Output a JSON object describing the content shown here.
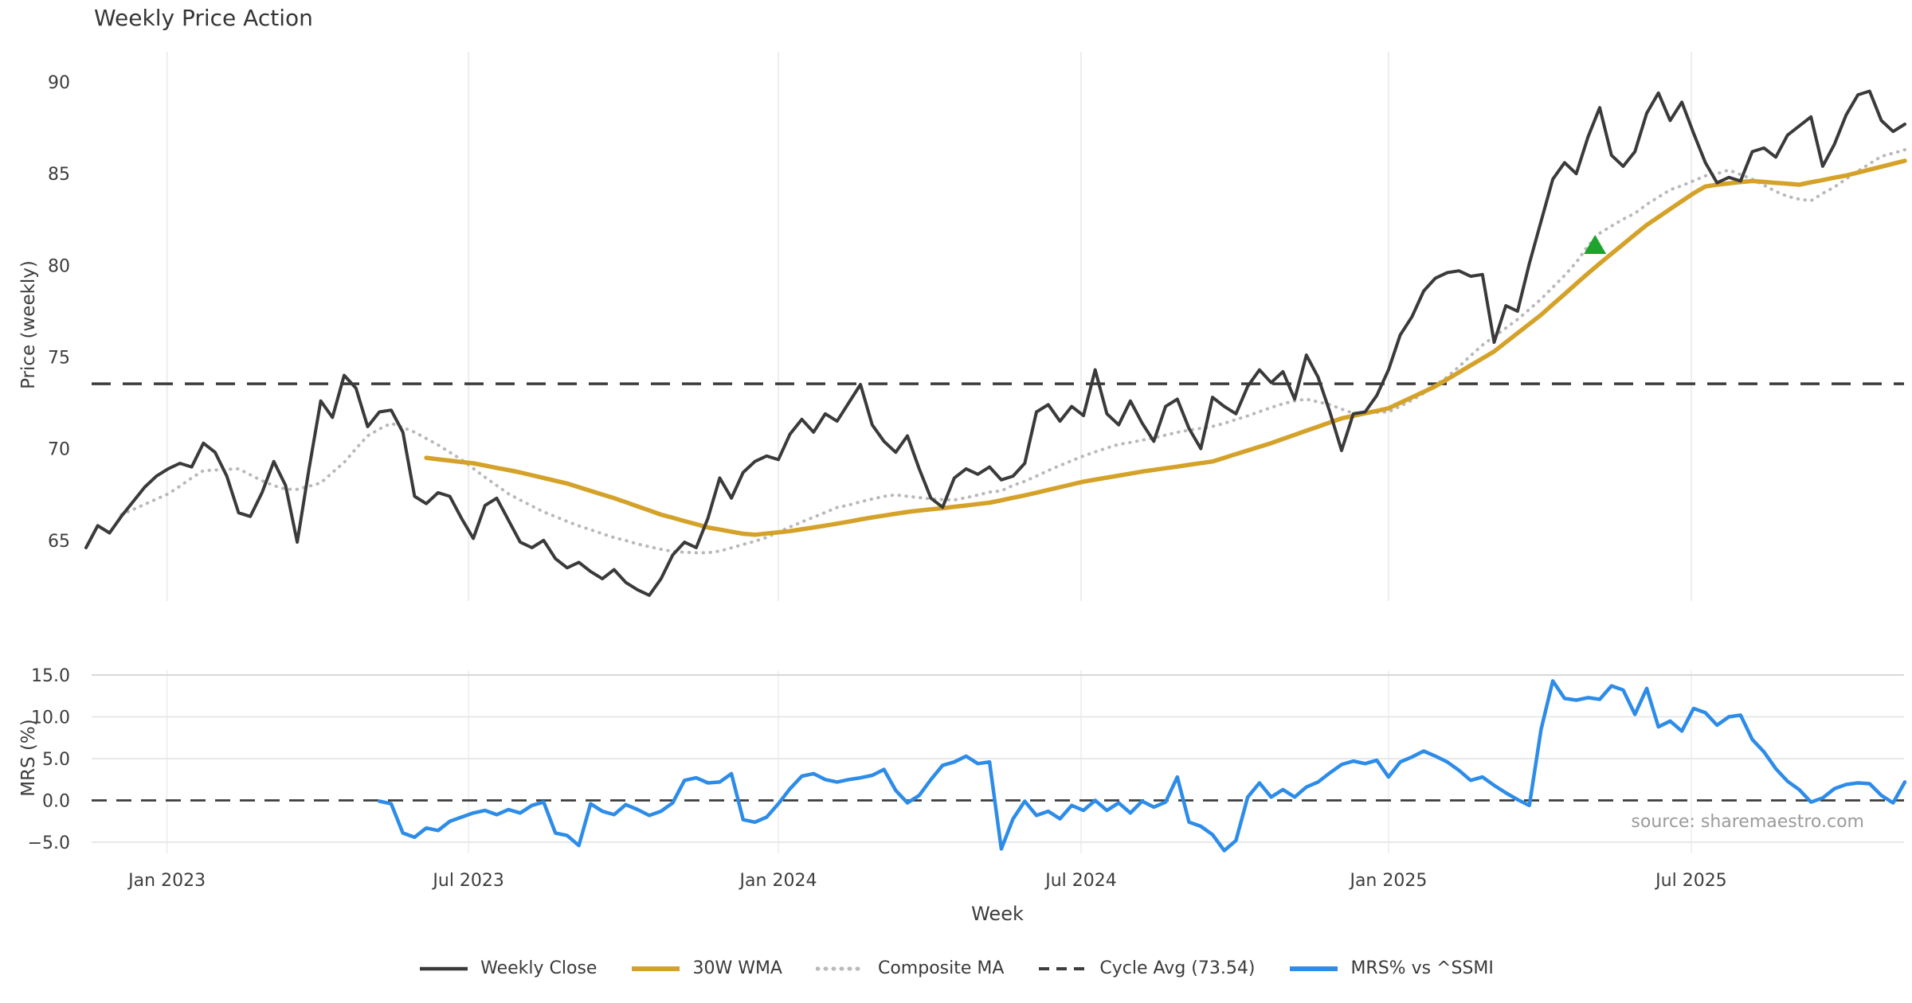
{
  "title": "Weekly Price Action",
  "source_note": "source: sharemaestro.com",
  "chart_data": {
    "type": "line",
    "title": "Weekly Price Action",
    "xlabel": "Week",
    "x_ticks": [
      {
        "label": "Jan 2023",
        "week": 6.9
      },
      {
        "label": "Jul 2023",
        "week": 32.6
      },
      {
        "label": "Jan 2024",
        "week": 59.0
      },
      {
        "label": "Jul 2024",
        "week": 84.8
      },
      {
        "label": "Jan 2025",
        "week": 111.0
      },
      {
        "label": "Jul 2025",
        "week": 136.8
      }
    ],
    "weeks_total": 155,
    "price_panel": {
      "ylabel": "Price (weekly)",
      "y_ticks": [
        90,
        85,
        80,
        75,
        70,
        65
      ],
      "ylim": [
        61.7,
        91.7
      ],
      "grid": "vertical-only",
      "cycle_avg": {
        "name": "Cycle Avg (73.54)",
        "value": 73.54,
        "color": "#3d3d3d",
        "style": "dashed"
      },
      "signal_marker": {
        "shape": "triangle-up",
        "color": "#1ca42c",
        "week": 128.6,
        "value": 81.1
      },
      "series": [
        {
          "name": "Composite MA",
          "color": "#b9b9b9",
          "style": "dotted",
          "width": 4,
          "start_week": 3,
          "values": [
            66.4,
            66.68,
            66.96,
            67.25,
            67.53,
            67.95,
            68.4,
            68.8,
            68.83,
            68.87,
            68.9,
            68.57,
            68.25,
            67.98,
            67.79,
            67.78,
            67.95,
            68.13,
            68.7,
            69.25,
            70.0,
            70.7,
            71.07,
            71.38,
            71.15,
            70.9,
            70.55,
            70.2,
            69.8,
            69.4,
            68.92,
            68.44,
            67.99,
            67.54,
            67.2,
            66.87,
            66.55,
            66.29,
            66.03,
            65.79,
            65.58,
            65.36,
            65.15,
            64.99,
            64.8,
            64.65,
            64.51,
            64.39,
            64.35,
            64.32,
            64.32,
            64.41,
            64.59,
            64.77,
            64.95,
            65.16,
            65.45,
            65.73,
            66.0,
            66.26,
            66.52,
            66.79,
            66.92,
            67.1,
            67.25,
            67.4,
            67.48,
            67.4,
            67.33,
            67.26,
            67.22,
            67.2,
            67.33,
            67.47,
            67.63,
            67.7,
            68.0,
            68.22,
            68.5,
            68.81,
            69.08,
            69.34,
            69.6,
            69.82,
            70.04,
            70.23,
            70.34,
            70.46,
            70.59,
            70.74,
            70.89,
            71.01,
            71.11,
            71.21,
            71.38,
            71.59,
            71.79,
            72.02,
            72.24,
            72.45,
            72.6,
            72.7,
            72.55,
            72.4,
            72.16,
            71.93,
            71.96,
            71.98,
            72.0,
            72.32,
            72.64,
            73.02,
            73.47,
            73.91,
            74.47,
            75.07,
            75.65,
            76.11,
            76.58,
            77.05,
            77.6,
            78.16,
            78.8,
            79.45,
            80.16,
            81.06,
            81.75,
            82.14,
            82.52,
            82.84,
            83.32,
            83.72,
            84.12,
            84.34,
            84.61,
            84.88,
            85.0,
            85.2,
            84.95,
            84.7,
            84.37,
            84.03,
            83.76,
            83.61,
            83.52,
            83.92,
            84.27,
            84.71,
            85.14,
            85.54,
            85.94,
            86.12,
            86.3
          ]
        },
        {
          "name": "30W WMA",
          "color": "#d5a229",
          "style": "solid",
          "width": 5.5,
          "start_week": 29,
          "values": [
            69.5,
            69.42,
            69.35,
            69.27,
            69.2,
            69.08,
            68.95,
            68.83,
            68.7,
            68.55,
            68.4,
            68.25,
            68.1,
            67.9,
            67.7,
            67.5,
            67.3,
            67.08,
            66.85,
            66.63,
            66.4,
            66.23,
            66.05,
            65.88,
            65.7,
            65.59,
            65.47,
            65.36,
            65.3,
            65.37,
            65.43,
            65.5,
            65.6,
            65.7,
            65.8,
            65.91,
            66.02,
            66.14,
            66.25,
            66.35,
            66.45,
            66.55,
            66.62,
            66.69,
            66.75,
            66.83,
            66.9,
            66.98,
            67.05,
            67.18,
            67.32,
            67.45,
            67.6,
            67.75,
            67.9,
            68.05,
            68.2,
            68.31,
            68.42,
            68.53,
            68.64,
            68.75,
            68.84,
            68.93,
            69.02,
            69.12,
            69.21,
            69.3,
            69.5,
            69.7,
            69.9,
            70.1,
            70.3,
            70.53,
            70.75,
            70.98,
            71.2,
            71.43,
            71.65,
            71.79,
            71.93,
            72.06,
            72.2,
            72.5,
            72.8,
            73.1,
            73.4,
            73.78,
            74.16,
            74.54,
            74.92,
            75.3,
            75.8,
            76.3,
            76.8,
            77.3,
            77.87,
            78.43,
            79.0,
            79.56,
            80.1,
            80.63,
            81.15,
            81.68,
            82.2,
            82.63,
            83.07,
            83.5,
            83.93,
            84.3,
            84.4,
            84.47,
            84.54,
            84.6,
            84.55,
            84.5,
            84.45,
            84.4,
            84.53,
            84.65,
            84.78,
            84.9,
            85.06,
            85.22,
            85.38,
            85.54,
            85.7
          ]
        },
        {
          "name": "Weekly Close",
          "color": "#3a3a3a",
          "style": "solid",
          "width": 4,
          "start_week": 0,
          "values": [
            64.6,
            65.8,
            65.4,
            66.3,
            67.1,
            67.9,
            68.5,
            68.9,
            69.2,
            69.0,
            70.3,
            69.8,
            68.5,
            66.5,
            66.3,
            67.6,
            69.3,
            68.0,
            64.9,
            68.9,
            72.6,
            71.7,
            74.0,
            73.3,
            71.2,
            72.0,
            72.1,
            70.9,
            67.4,
            67.0,
            67.6,
            67.4,
            66.2,
            65.1,
            66.9,
            67.3,
            66.1,
            64.9,
            64.6,
            65.0,
            64.0,
            63.5,
            63.8,
            63.3,
            62.9,
            63.4,
            62.7,
            62.3,
            62.0,
            62.9,
            64.2,
            64.9,
            64.6,
            66.2,
            68.4,
            67.3,
            68.7,
            69.3,
            69.6,
            69.4,
            70.8,
            71.6,
            70.9,
            71.9,
            71.5,
            72.5,
            73.5,
            71.3,
            70.4,
            69.8,
            70.7,
            68.9,
            67.3,
            66.8,
            68.4,
            68.9,
            68.6,
            69.0,
            68.3,
            68.5,
            69.2,
            72.0,
            72.4,
            71.5,
            72.3,
            71.8,
            74.3,
            71.9,
            71.3,
            72.6,
            71.4,
            70.4,
            72.3,
            72.7,
            71.1,
            70.0,
            72.8,
            72.3,
            71.9,
            73.4,
            74.3,
            73.6,
            74.2,
            72.7,
            75.1,
            73.9,
            72.0,
            69.9,
            71.9,
            72.0,
            72.9,
            74.3,
            76.2,
            77.2,
            78.6,
            79.3,
            79.6,
            79.7,
            79.4,
            79.5,
            75.8,
            77.8,
            77.5,
            80.1,
            82.4,
            84.7,
            85.6,
            85.0,
            87.0,
            88.6,
            86.0,
            85.4,
            86.2,
            88.3,
            89.4,
            87.9,
            88.9,
            87.2,
            85.6,
            84.5,
            84.8,
            84.6,
            86.2,
            86.4,
            85.9,
            87.1,
            87.6,
            88.1,
            85.4,
            86.6,
            88.2,
            89.3,
            89.5,
            87.9,
            87.3,
            87.7
          ]
        }
      ]
    },
    "mrs_panel": {
      "ylabel": "MRS (%)",
      "y_ticks": [
        {
          "label": "15.0",
          "value": 15
        },
        {
          "label": "10.0",
          "value": 10
        },
        {
          "label": "5.0",
          "value": 5
        },
        {
          "label": "0.0",
          "value": 0
        },
        {
          "label": "−5.0",
          "value": -5
        }
      ],
      "ylim": [
        -7.7,
        16.6
      ],
      "zero_line": {
        "value": 0,
        "color": "#3d3d3d",
        "style": "dashed"
      },
      "series": [
        {
          "name": "MRS% vs ^SSMI",
          "color": "#2d8ce8",
          "style": "solid",
          "width": 4.5,
          "start_week": 25,
          "values": [
            -0.1,
            -0.4,
            -3.9,
            -4.4,
            -3.3,
            -3.6,
            -2.5,
            -2.0,
            -1.5,
            -1.2,
            -1.7,
            -1.1,
            -1.5,
            -0.6,
            -0.2,
            -3.9,
            -4.2,
            -5.4,
            -0.4,
            -1.3,
            -1.7,
            -0.5,
            -1.1,
            -1.8,
            -1.3,
            -0.3,
            2.4,
            2.7,
            2.1,
            2.2,
            3.2,
            -2.3,
            -2.6,
            -2.0,
            -0.4,
            1.4,
            2.9,
            3.2,
            2.5,
            2.2,
            2.5,
            2.7,
            3.0,
            3.7,
            1.2,
            -0.3,
            0.6,
            2.5,
            4.2,
            4.6,
            5.3,
            4.4,
            4.6,
            -5.8,
            -2.2,
            -0.1,
            -1.8,
            -1.3,
            -2.2,
            -0.6,
            -1.2,
            0.0,
            -1.2,
            -0.3,
            -1.5,
            -0.1,
            -0.8,
            -0.2,
            2.8,
            -2.6,
            -3.1,
            -4.1,
            -6.0,
            -4.8,
            0.4,
            2.1,
            0.4,
            1.3,
            0.4,
            1.6,
            2.2,
            3.3,
            4.3,
            4.7,
            4.4,
            4.8,
            2.8,
            4.6,
            5.2,
            5.9,
            5.3,
            4.6,
            3.6,
            2.4,
            2.8,
            1.8,
            0.9,
            0.1,
            -0.6,
            8.5,
            14.3,
            12.2,
            12.0,
            12.3,
            12.1,
            13.7,
            13.2,
            10.3,
            13.4,
            8.8,
            9.5,
            8.3,
            11.0,
            10.5,
            9.0,
            10.0,
            10.2,
            7.3,
            5.8,
            3.8,
            2.3,
            1.3,
            -0.2,
            0.3,
            1.4,
            1.9,
            2.1,
            2.0,
            0.6,
            -0.3,
            2.2
          ]
        }
      ]
    },
    "legend": [
      {
        "label": "Weekly Close",
        "color": "#3a3a3a",
        "style": "solid"
      },
      {
        "label": "30W WMA",
        "color": "#d5a229",
        "style": "solid-thick"
      },
      {
        "label": "Composite MA",
        "color": "#b9b9b9",
        "style": "dotted"
      },
      {
        "label": "Cycle Avg (73.54)",
        "color": "#3d3d3d",
        "style": "dashed"
      },
      {
        "label": "MRS% vs ^SSMI",
        "color": "#2d8ce8",
        "style": "solid-thick"
      }
    ]
  }
}
